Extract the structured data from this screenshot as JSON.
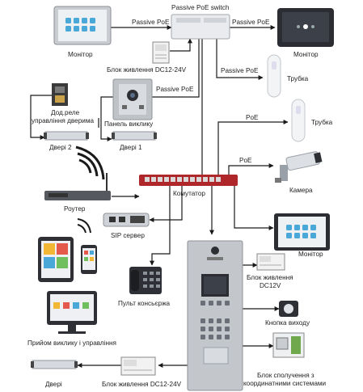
{
  "labels": {
    "monitor_top_left": "Монітор",
    "switch": "Passive PoE switch",
    "passive_poe_left": "Passive PoE",
    "passive_poe_right": "Passive PoE",
    "monitor_top_right": "Монітор",
    "psu_top": "Блок живлення DC12-24V",
    "passive_poe_mid": "Passive PoE",
    "passive_poe_tube": "Passive PoE",
    "handset_1": "Трубка",
    "relay": "Дод.реле",
    "relay_2": "управління дверима",
    "call_panel": "Панель виклику",
    "poe_handset": "PoE",
    "handset_2": "Трубка",
    "door_2": "Двері 2",
    "door_1": "Двері 1",
    "poe_camera": "PoE",
    "camera": "Камера",
    "router": "Роутер",
    "switch_main": "Комутатор",
    "sip_server": "SIP сервер",
    "monitor_right": "Монітор",
    "psu_right": "Блок живлення",
    "psu_right_2": "DC12V",
    "concierge": "Пульт консьєржа",
    "exit_button": "Кнопка виходу",
    "receive_control": "Прийом виклику і управління",
    "coord_unit": "Блок сполучення з",
    "coord_unit_2": "координатними системами",
    "door_bottom": "Двері",
    "psu_bottom": "Блок живлення DC12-24V"
  },
  "colors": {
    "switch_red": "#b0272b",
    "screen_dark": "#2b2d33",
    "app_tile": "#4aa8d8",
    "panel_grey": "#bfc3c8"
  }
}
